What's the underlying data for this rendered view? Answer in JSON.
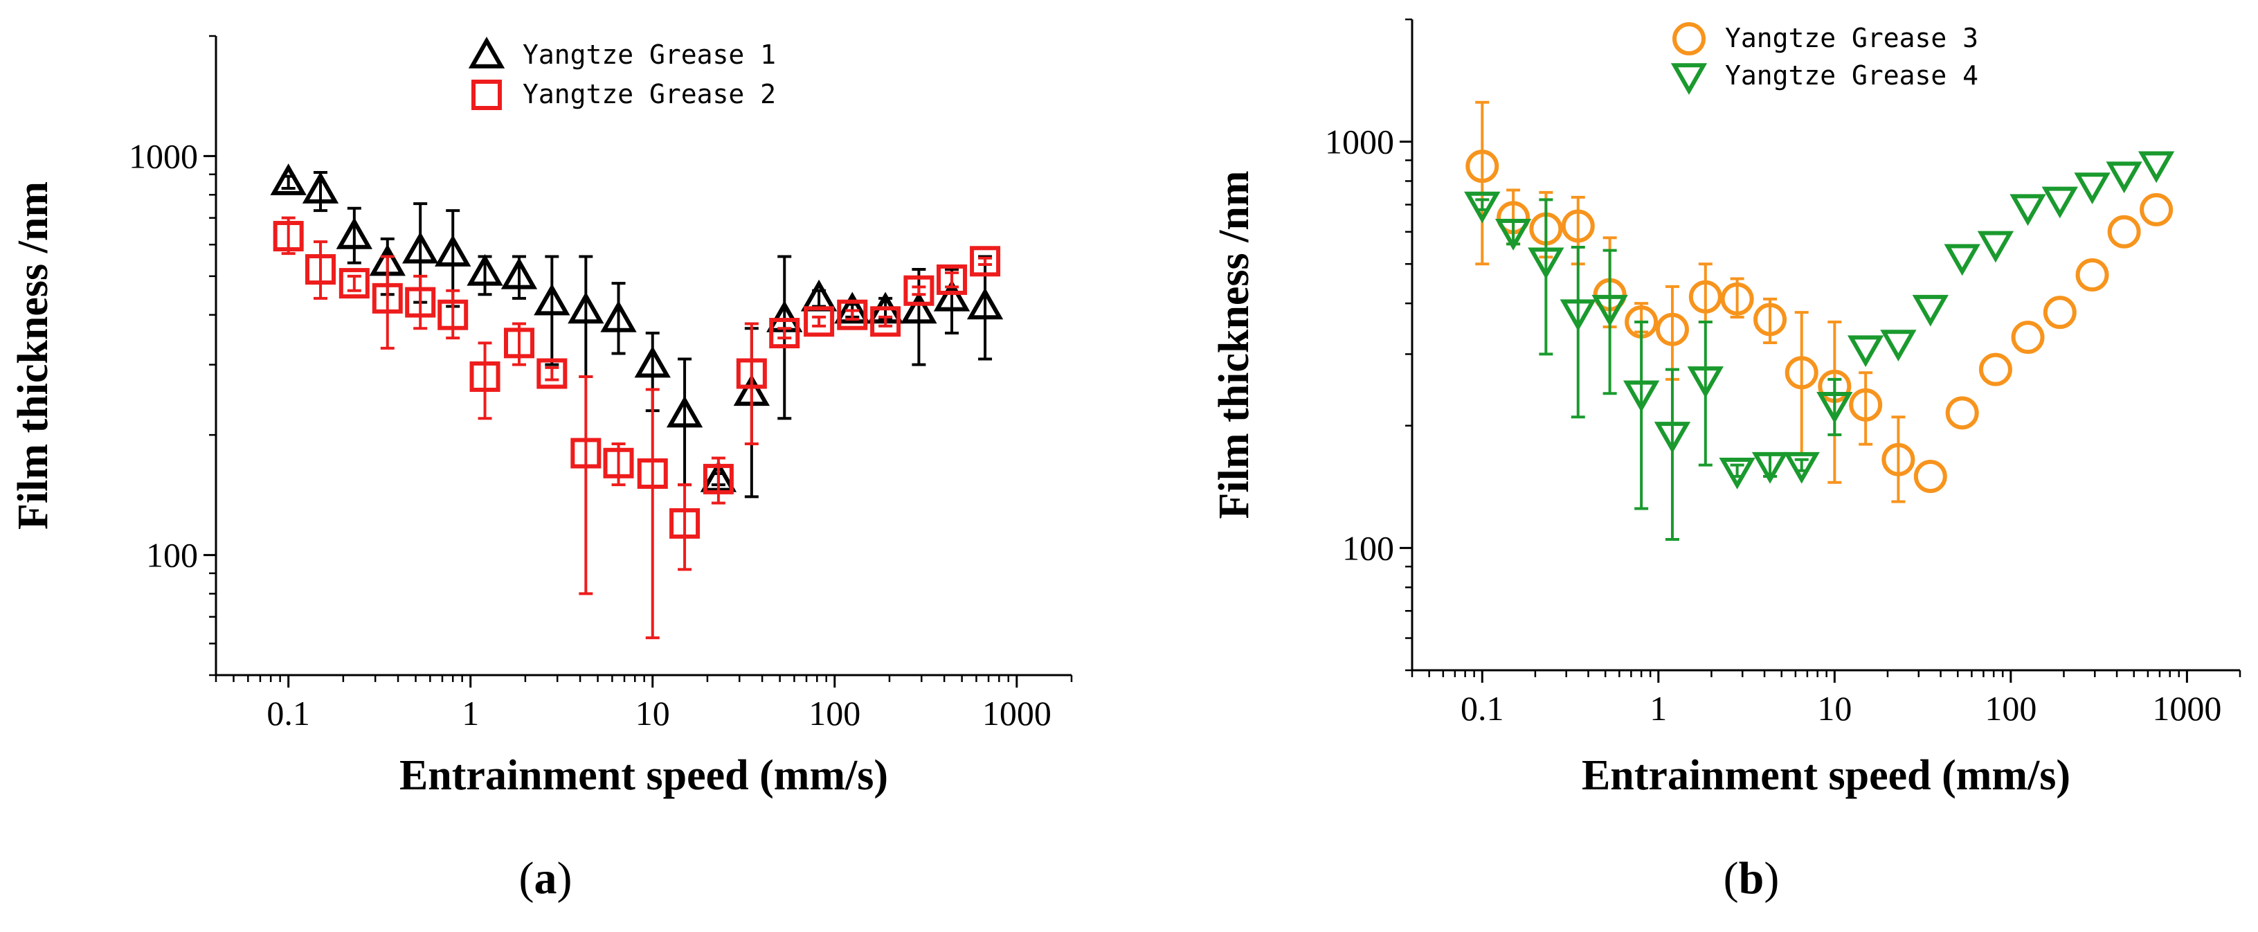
{
  "chart_data": [
    {
      "type": "scatter",
      "panel_label": "a",
      "xlabel": "Entrainment speed (mm/s)",
      "ylabel": "Film thickness /nm",
      "xscale": "log",
      "yscale": "log",
      "xlim": [
        0.04,
        2000
      ],
      "ylim": [
        50,
        2000
      ],
      "x_ticks": [
        {
          "v": 0.1,
          "label": "0.1"
        },
        {
          "v": 1,
          "label": "1"
        },
        {
          "v": 10,
          "label": "10"
        },
        {
          "v": 100,
          "label": "100"
        },
        {
          "v": 1000,
          "label": "1000"
        }
      ],
      "y_ticks": [
        {
          "v": 100,
          "label": "100"
        },
        {
          "v": 1000,
          "label": "1000"
        }
      ],
      "legend_position": "top-center",
      "series": [
        {
          "name": "Yangtze Grease 1",
          "marker": "triangle-up",
          "color": "#000000",
          "points": [
            {
              "x": 0.1,
              "y": 860,
              "lo": 830,
              "hi": 890
            },
            {
              "x": 0.15,
              "y": 820,
              "lo": 730,
              "hi": 910
            },
            {
              "x": 0.23,
              "y": 630,
              "lo": 540,
              "hi": 740
            },
            {
              "x": 0.35,
              "y": 540,
              "lo": 450,
              "hi": 620
            },
            {
              "x": 0.53,
              "y": 580,
              "lo": 430,
              "hi": 760
            },
            {
              "x": 0.8,
              "y": 570,
              "lo": 420,
              "hi": 730
            },
            {
              "x": 1.2,
              "y": 510,
              "lo": 450,
              "hi": 560
            },
            {
              "x": 1.85,
              "y": 500,
              "lo": 440,
              "hi": 560
            },
            {
              "x": 2.8,
              "y": 430,
              "lo": 300,
              "hi": 560
            },
            {
              "x": 4.3,
              "y": 410,
              "lo": 280,
              "hi": 560
            },
            {
              "x": 6.5,
              "y": 390,
              "lo": 320,
              "hi": 480
            },
            {
              "x": 10,
              "y": 300,
              "lo": 230,
              "hi": 360
            },
            {
              "x": 15,
              "y": 225,
              "lo": 150,
              "hi": 310
            },
            {
              "x": 23,
              "y": 155,
              "lo": 150,
              "hi": 160
            },
            {
              "x": 35,
              "y": 255,
              "lo": 140,
              "hi": 370
            },
            {
              "x": 53,
              "y": 390,
              "lo": 220,
              "hi": 560
            },
            {
              "x": 82,
              "y": 440,
              "lo": 420,
              "hi": 460
            },
            {
              "x": 125,
              "y": 410,
              "lo": 395,
              "hi": 425
            },
            {
              "x": 190,
              "y": 410,
              "lo": 390,
              "hi": 440
            },
            {
              "x": 290,
              "y": 410,
              "lo": 300,
              "hi": 520
            },
            {
              "x": 440,
              "y": 440,
              "lo": 360,
              "hi": 520
            },
            {
              "x": 670,
              "y": 420,
              "lo": 310,
              "hi": 560
            }
          ]
        },
        {
          "name": "Yangtze Grease 2",
          "marker": "square",
          "color": "#ee1c1c",
          "points": [
            {
              "x": 0.1,
              "y": 630,
              "lo": 570,
              "hi": 700
            },
            {
              "x": 0.15,
              "y": 520,
              "lo": 440,
              "hi": 610
            },
            {
              "x": 0.23,
              "y": 480,
              "lo": 460,
              "hi": 500
            },
            {
              "x": 0.35,
              "y": 440,
              "lo": 330,
              "hi": 560
            },
            {
              "x": 0.53,
              "y": 430,
              "lo": 370,
              "hi": 500
            },
            {
              "x": 0.8,
              "y": 400,
              "lo": 350,
              "hi": 460
            },
            {
              "x": 1.2,
              "y": 280,
              "lo": 220,
              "hi": 340
            },
            {
              "x": 1.85,
              "y": 340,
              "lo": 300,
              "hi": 380
            },
            {
              "x": 2.8,
              "y": 285,
              "lo": 275,
              "hi": 295
            },
            {
              "x": 4.3,
              "y": 180,
              "lo": 80,
              "hi": 280
            },
            {
              "x": 6.5,
              "y": 170,
              "lo": 150,
              "hi": 190
            },
            {
              "x": 10,
              "y": 160,
              "lo": 62,
              "hi": 260
            },
            {
              "x": 15,
              "y": 120,
              "lo": 92,
              "hi": 150
            },
            {
              "x": 23,
              "y": 155,
              "lo": 135,
              "hi": 175
            },
            {
              "x": 35,
              "y": 285,
              "lo": 190,
              "hi": 380
            },
            {
              "x": 53,
              "y": 360,
              "lo": 350,
              "hi": 370
            },
            {
              "x": 82,
              "y": 385,
              "lo": 375,
              "hi": 395
            },
            {
              "x": 125,
              "y": 400,
              "lo": 390,
              "hi": 410
            },
            {
              "x": 190,
              "y": 385,
              "lo": 375,
              "hi": 395
            },
            {
              "x": 290,
              "y": 460,
              "lo": 450,
              "hi": 470
            },
            {
              "x": 440,
              "y": 490,
              "lo": 470,
              "hi": 510
            },
            {
              "x": 670,
              "y": 545,
              "lo": 535,
              "hi": 555
            }
          ]
        }
      ]
    },
    {
      "type": "scatter",
      "panel_label": "b",
      "xlabel": "Entrainment speed (mm/s)",
      "ylabel": "Film thickness /nm",
      "xscale": "log",
      "yscale": "log",
      "xlim": [
        0.04,
        2000
      ],
      "ylim": [
        50,
        2000
      ],
      "x_ticks": [
        {
          "v": 0.1,
          "label": "0.1"
        },
        {
          "v": 1,
          "label": "1"
        },
        {
          "v": 10,
          "label": "10"
        },
        {
          "v": 100,
          "label": "100"
        },
        {
          "v": 1000,
          "label": "1000"
        }
      ],
      "y_ticks": [
        {
          "v": 100,
          "label": "100"
        },
        {
          "v": 1000,
          "label": "1000"
        }
      ],
      "legend_position": "top-center",
      "series": [
        {
          "name": "Yangtze Grease 3",
          "marker": "circle",
          "color": "#f7941d",
          "points": [
            {
              "x": 0.1,
              "y": 870,
              "lo": 500,
              "hi": 1250
            },
            {
              "x": 0.15,
              "y": 650,
              "lo": 560,
              "hi": 760
            },
            {
              "x": 0.23,
              "y": 610,
              "lo": 520,
              "hi": 750
            },
            {
              "x": 0.35,
              "y": 620,
              "lo": 500,
              "hi": 730
            },
            {
              "x": 0.53,
              "y": 420,
              "lo": 350,
              "hi": 580
            },
            {
              "x": 0.8,
              "y": 360,
              "lo": 340,
              "hi": 400
            },
            {
              "x": 1.2,
              "y": 345,
              "lo": 260,
              "hi": 440
            },
            {
              "x": 1.85,
              "y": 415,
              "lo": 360,
              "hi": 500
            },
            {
              "x": 2.8,
              "y": 410,
              "lo": 370,
              "hi": 460
            },
            {
              "x": 4.3,
              "y": 365,
              "lo": 320,
              "hi": 410
            },
            {
              "x": 6.5,
              "y": 270,
              "lo": 170,
              "hi": 380
            },
            {
              "x": 10,
              "y": 250,
              "lo": 145,
              "hi": 360
            },
            {
              "x": 15,
              "y": 225,
              "lo": 180,
              "hi": 270
            },
            {
              "x": 23,
              "y": 165,
              "lo": 130,
              "hi": 210
            },
            {
              "x": 35,
              "y": 150
            },
            {
              "x": 53,
              "y": 215
            },
            {
              "x": 82,
              "y": 275
            },
            {
              "x": 125,
              "y": 330
            },
            {
              "x": 190,
              "y": 380
            },
            {
              "x": 290,
              "y": 470
            },
            {
              "x": 440,
              "y": 600
            },
            {
              "x": 670,
              "y": 680
            }
          ]
        },
        {
          "name": "Yangtze Grease 4",
          "marker": "triangle-down",
          "color": "#1a9a2e",
          "points": [
            {
              "x": 0.1,
              "y": 700,
              "lo": 680,
              "hi": 720
            },
            {
              "x": 0.15,
              "y": 600,
              "lo": 560,
              "hi": 640
            },
            {
              "x": 0.23,
              "y": 510,
              "lo": 300,
              "hi": 720
            },
            {
              "x": 0.35,
              "y": 380,
              "lo": 210,
              "hi": 550
            },
            {
              "x": 0.53,
              "y": 390,
              "lo": 240,
              "hi": 540
            },
            {
              "x": 0.8,
              "y": 240,
              "lo": 125,
              "hi": 360
            },
            {
              "x": 1.2,
              "y": 190,
              "lo": 105,
              "hi": 275
            },
            {
              "x": 1.85,
              "y": 260,
              "lo": 160,
              "hi": 360
            },
            {
              "x": 2.8,
              "y": 155,
              "lo": 150,
              "hi": 160
            },
            {
              "x": 4.3,
              "y": 160,
              "lo": 150,
              "hi": 170
            },
            {
              "x": 6.5,
              "y": 160,
              "lo": 155,
              "hi": 165
            },
            {
              "x": 10,
              "y": 225,
              "lo": 190,
              "hi": 260
            },
            {
              "x": 15,
              "y": 310
            },
            {
              "x": 23,
              "y": 320
            },
            {
              "x": 35,
              "y": 390
            },
            {
              "x": 53,
              "y": 520
            },
            {
              "x": 82,
              "y": 560
            },
            {
              "x": 125,
              "y": 690
            },
            {
              "x": 190,
              "y": 720
            },
            {
              "x": 290,
              "y": 780
            },
            {
              "x": 440,
              "y": 830
            },
            {
              "x": 670,
              "y": 880
            }
          ]
        }
      ]
    }
  ]
}
